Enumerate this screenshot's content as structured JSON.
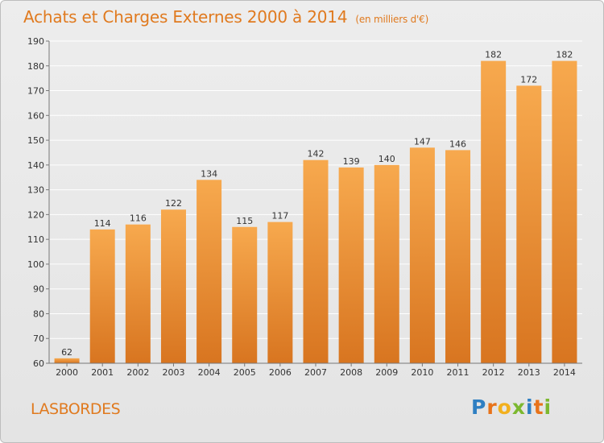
{
  "title": "Achats et Charges Externes 2000 à 2014",
  "subtitle": "(en milliers d'€)",
  "commune": "LASBORDES",
  "logo": {
    "letters": [
      "P",
      "r",
      "o",
      "x",
      "i",
      "t",
      "i"
    ],
    "colors": [
      "#2f7fc2",
      "#e8731a",
      "#f2b01e",
      "#7cb82f",
      "#2f7fc2",
      "#e8731a",
      "#7cb82f"
    ]
  },
  "colors": {
    "accent": "#e07a1f",
    "bar_light": "#f7a94e",
    "bar_dark": "#d87520",
    "grid": "#ffffff",
    "axis_text": "#333333"
  },
  "chart_data": {
    "type": "bar",
    "title": "Achats et Charges Externes 2000 à 2014",
    "subtitle": "(en milliers d'€)",
    "xlabel": "",
    "ylabel": "",
    "categories": [
      "2000",
      "2001",
      "2002",
      "2003",
      "2004",
      "2005",
      "2006",
      "2007",
      "2008",
      "2009",
      "2010",
      "2011",
      "2012",
      "2013",
      "2014"
    ],
    "values": [
      62,
      114,
      116,
      122,
      134,
      115,
      117,
      142,
      139,
      140,
      147,
      146,
      182,
      172,
      182
    ],
    "ylim": [
      60,
      190
    ],
    "yticks": [
      60,
      70,
      80,
      90,
      100,
      110,
      120,
      130,
      140,
      150,
      160,
      170,
      180,
      190
    ],
    "grid": true,
    "data_labels": true
  }
}
